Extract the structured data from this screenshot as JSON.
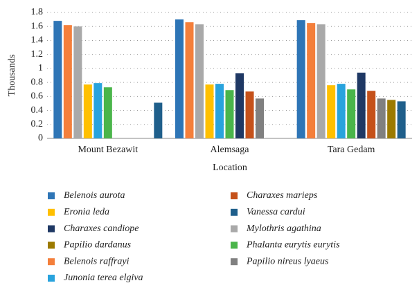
{
  "chart_data": {
    "type": "bar",
    "y_label": "Thousands",
    "x_label": "Location",
    "categories": [
      "Mount Bezawit",
      "Alemsaga",
      "Tara Gedam"
    ],
    "ylim": [
      0,
      1.8
    ],
    "yticks": [
      0,
      0.2,
      0.4,
      0.6,
      0.8,
      1,
      1.2,
      1.4,
      1.6,
      1.8
    ],
    "grid": true,
    "series": [
      {
        "name": "Belenois aurota",
        "color": "#2e75b6",
        "values": [
          1.68,
          1.7,
          1.69
        ]
      },
      {
        "name": "Belenois raffrayi",
        "color": "#f47f3b",
        "values": [
          1.62,
          1.66,
          1.65
        ]
      },
      {
        "name": "Mylothris agathina",
        "color": "#a9a9a9",
        "values": [
          1.6,
          1.63,
          1.63
        ]
      },
      {
        "name": "Eronia leda",
        "color": "#ffc000",
        "values": [
          0.77,
          0.77,
          0.76
        ]
      },
      {
        "name": "Junonia terea elgiva",
        "color": "#29a3dd",
        "values": [
          0.79,
          0.78,
          0.78
        ]
      },
      {
        "name": "Phalanta eurytis eurytis",
        "color": "#4ab54a",
        "values": [
          0.73,
          0.69,
          0.7
        ]
      },
      {
        "name": "Charaxes candiope",
        "color": "#1f3864",
        "values": [
          null,
          0.93,
          0.94
        ]
      },
      {
        "name": "Charaxes marieps",
        "color": "#c5511a",
        "values": [
          null,
          0.67,
          0.68
        ]
      },
      {
        "name": "Papilio nireus lyaeus",
        "color": "#808080",
        "values": [
          null,
          0.57,
          0.57
        ]
      },
      {
        "name": "Papilio dardanus",
        "color": "#9c7a00",
        "values": [
          null,
          null,
          0.55
        ]
      },
      {
        "name": "Vanessa cardui",
        "color": "#1f5f8b",
        "values": [
          0.51,
          null,
          0.53
        ]
      }
    ]
  }
}
